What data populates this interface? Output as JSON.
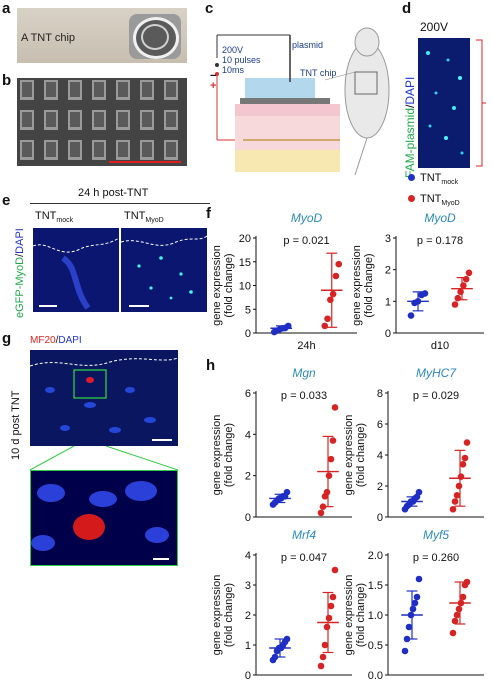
{
  "panels": {
    "a": {
      "letter": "a",
      "chip_caption": "A TNT chip"
    },
    "b": {
      "letter": "b"
    },
    "c": {
      "letter": "c",
      "voltage": "200V",
      "pulses": "10 pulses",
      "duration": "10ms",
      "minus": "−",
      "plus": "+",
      "plasmid": "plasmid",
      "chip": "TNT chip"
    },
    "d": {
      "letter": "d",
      "title": "200V",
      "ylabel_fam": "FAM-plasmid",
      "ylabel_sep": "/",
      "ylabel_dapi": "DAPI"
    },
    "e": {
      "letter": "e",
      "title": "24 h post-TNT",
      "col1_main": "TNT",
      "col1_sub": "mock",
      "col2_main": "TNT",
      "col2_sub": "MyoD",
      "ylabel_gfp": "eGFP-MyoD",
      "ylabel_sep": "/",
      "ylabel_dapi": "DAPI"
    },
    "g": {
      "letter": "g",
      "stain_mf20": "MF20",
      "stain_sep": "/",
      "stain_dapi": "DAPI",
      "side_label": "10 d post TNT"
    },
    "f": {
      "letter": "f"
    },
    "h": {
      "letter": "h"
    }
  },
  "legend": {
    "mock_main": "TNT",
    "mock_sub": "mock",
    "myod_main": "TNT",
    "myod_sub": "MyoD",
    "mock_color": "#1f2fc4",
    "myod_color": "#d62424"
  },
  "colors": {
    "blue": "#1f2fc4",
    "red": "#d62424",
    "title": "#2a8ab8"
  },
  "chart_data": [
    {
      "id": "f1",
      "type": "scatter",
      "title": "MyoD",
      "ylabel": "gene expression\n(fold change)",
      "ylim": [
        0,
        20
      ],
      "yticks": [
        0,
        5,
        10,
        15,
        20
      ],
      "xlabel": "24h",
      "pvalue": "p = 0.021",
      "groups": [
        {
          "name": "TNT mock",
          "color": "#1f2fc4",
          "mean": 1.0,
          "sd": 0.5,
          "values": [
            0.2,
            0.5,
            0.8,
            1.0,
            1.1,
            1.5
          ]
        },
        {
          "name": "TNT MyoD",
          "color": "#d62424",
          "mean": 9.0,
          "sd": 7.8,
          "values": [
            1.5,
            3.0,
            7.0,
            8.2,
            12.0,
            14.5
          ]
        }
      ]
    },
    {
      "id": "f2",
      "type": "scatter",
      "title": "MyoD",
      "ylabel": "gene expression\n(fold change)",
      "ylim": [
        0,
        3
      ],
      "yticks": [
        0,
        1,
        2,
        3
      ],
      "xlabel": "d10",
      "pvalue": "p = 0.178",
      "groups": [
        {
          "name": "TNT mock",
          "color": "#1f2fc4",
          "mean": 1.0,
          "sd": 0.3,
          "values": [
            0.55,
            0.95,
            1.0,
            1.2,
            1.25
          ]
        },
        {
          "name": "TNT MyoD",
          "color": "#d62424",
          "mean": 1.4,
          "sd": 0.35,
          "values": [
            0.9,
            1.1,
            1.3,
            1.5,
            1.7,
            1.9
          ]
        }
      ]
    },
    {
      "id": "h1",
      "type": "scatter",
      "title": "Mgn",
      "ylabel": "gene expression\n(fold change)",
      "ylim": [
        0,
        6
      ],
      "yticks": [
        0,
        2,
        4,
        6
      ],
      "xlabel": "",
      "pvalue": "p = 0.033",
      "groups": [
        {
          "name": "TNT mock",
          "color": "#1f2fc4",
          "mean": 0.9,
          "sd": 0.2,
          "values": [
            0.6,
            0.7,
            0.8,
            0.9,
            0.9,
            1.0,
            1.0,
            1.2
          ]
        },
        {
          "name": "TNT MyoD",
          "color": "#d62424",
          "mean": 2.2,
          "sd": 1.7,
          "values": [
            0.2,
            0.5,
            1.0,
            1.2,
            2.0,
            2.8,
            3.7,
            5.3
          ]
        }
      ]
    },
    {
      "id": "h2",
      "type": "scatter",
      "title": "MyHC7",
      "ylabel": "gene expression\n(fold change)",
      "ylim": [
        0,
        8
      ],
      "yticks": [
        0,
        2,
        4,
        6,
        8
      ],
      "xlabel": "",
      "pvalue": "p = 0.029",
      "groups": [
        {
          "name": "TNT mock",
          "color": "#1f2fc4",
          "mean": 1.0,
          "sd": 0.3,
          "values": [
            0.5,
            0.7,
            0.8,
            1.0,
            1.0,
            1.2,
            1.3,
            1.6
          ]
        },
        {
          "name": "TNT MyoD",
          "color": "#d62424",
          "mean": 2.5,
          "sd": 1.8,
          "values": [
            0.5,
            1.0,
            1.4,
            2.0,
            2.6,
            3.4,
            3.8,
            4.8
          ]
        }
      ]
    },
    {
      "id": "h3",
      "type": "scatter",
      "title": "Mrf4",
      "ylabel": "gene expression\n(fold change)",
      "ylim": [
        0,
        4
      ],
      "yticks": [
        0,
        1,
        2,
        3,
        4
      ],
      "xlabel": "",
      "pvalue": "p = 0.047",
      "groups": [
        {
          "name": "TNT mock",
          "color": "#1f2fc4",
          "mean": 0.9,
          "sd": 0.3,
          "values": [
            0.5,
            0.6,
            0.8,
            0.9,
            0.9,
            1.0,
            1.1,
            1.2
          ]
        },
        {
          "name": "TNT MyoD",
          "color": "#d62424",
          "mean": 1.75,
          "sd": 1.0,
          "values": [
            0.3,
            0.6,
            1.0,
            1.6,
            1.9,
            2.3,
            2.6,
            3.5
          ]
        }
      ]
    },
    {
      "id": "h4",
      "type": "scatter",
      "title": "Myf5",
      "ylabel": "gene expression\n(fold change)",
      "ylim": [
        0,
        2.0
      ],
      "yticks": [
        0.0,
        0.5,
        1.0,
        1.5,
        2.0
      ],
      "xlabel": "",
      "pvalue": "p = 0.260",
      "groups": [
        {
          "name": "TNT mock",
          "color": "#1f2fc4",
          "mean": 1.0,
          "sd": 0.4,
          "values": [
            0.4,
            0.6,
            0.8,
            1.0,
            1.1,
            1.2,
            1.3,
            1.6
          ]
        },
        {
          "name": "TNT MyoD",
          "color": "#d62424",
          "mean": 1.2,
          "sd": 0.35,
          "values": [
            0.7,
            0.9,
            1.0,
            1.1,
            1.2,
            1.3,
            1.5,
            1.55
          ]
        }
      ]
    }
  ]
}
